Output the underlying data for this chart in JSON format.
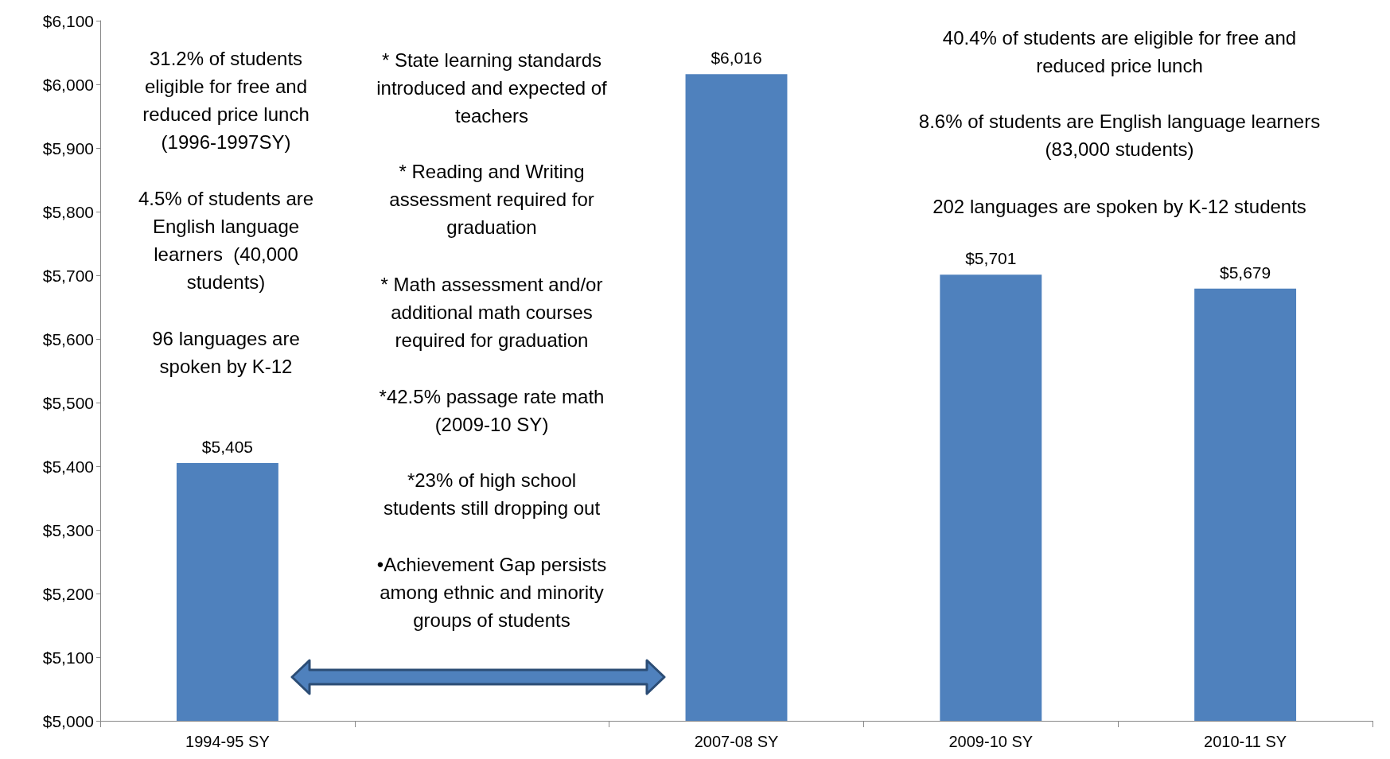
{
  "chart_data": {
    "type": "bar",
    "categories": [
      "1994-95 SY",
      null,
      "2007-08 SY",
      "2009-10 SY",
      "2010-11 SY"
    ],
    "values": [
      5405,
      null,
      6016,
      5701,
      5679
    ],
    "value_labels": [
      "$5,405",
      null,
      "$6,016",
      "$5,701",
      "$5,679"
    ],
    "color": "#4f81bd",
    "ylim": [
      5000,
      6100
    ],
    "yticks": [
      {
        "value": 5000,
        "label": "$5,000"
      },
      {
        "value": 5100,
        "label": "$5,100"
      },
      {
        "value": 5200,
        "label": "$5,200"
      },
      {
        "value": 5300,
        "label": "$5,300"
      },
      {
        "value": 5400,
        "label": "$5,400"
      },
      {
        "value": 5500,
        "label": "$5,500"
      },
      {
        "value": 5600,
        "label": "$5,600"
      },
      {
        "value": 5700,
        "label": "$5,700"
      },
      {
        "value": 5800,
        "label": "$5,800"
      },
      {
        "value": 5900,
        "label": "$5,900"
      },
      {
        "value": 6000,
        "label": "$6,000"
      },
      {
        "value": 6100,
        "label": "$6,100"
      }
    ],
    "grid": false,
    "annotations": [
      "31.2% of students\neligible for free and\nreduced price lunch\n(1996-1997SY)",
      "4.5% of students are\nEnglish language\nlearners  (40,000\nstudents)",
      "96 languages are\nspoken by K-12",
      "* State learning standards\nintroduced and expected of\nteachers",
      "* Reading and Writing\nassessment required for\ngraduation",
      "* Math assessment and/or\nadditional math courses\nrequired for graduation",
      "*42.5% passage rate math\n(2009-10 SY)",
      "*23% of high school\nstudents still dropping out",
      "•Achievement Gap persists\namong ethnic and minority\ngroups of students",
      "40.4% of students are eligible for free and\nreduced price lunch",
      "8.6% of students are English language learners\n(83,000 students)",
      "202 languages are spoken by K-12 students"
    ]
  }
}
